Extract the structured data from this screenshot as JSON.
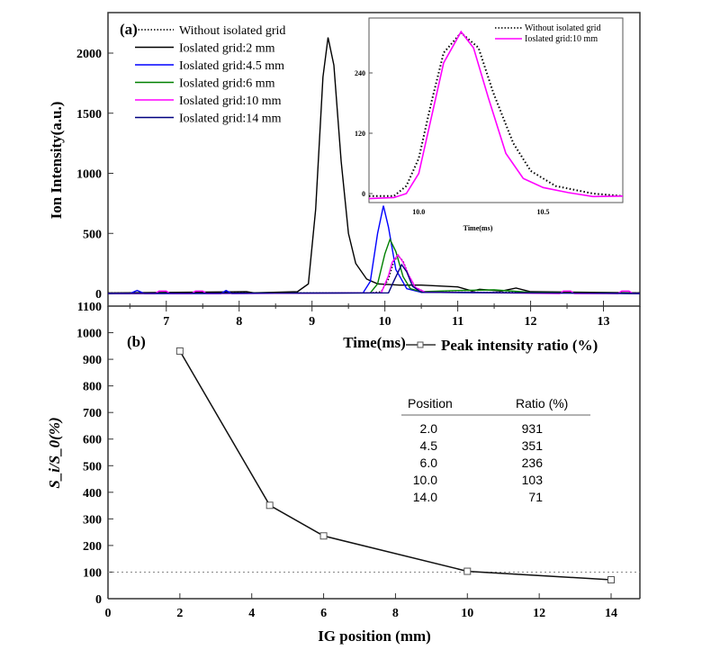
{
  "chart_data": [
    {
      "type": "line",
      "panel_label": "(a)",
      "xlabel": "Time(ms)",
      "ylabel": "Ion Intensity(a.u.)",
      "xlim": [
        6.2,
        13.5
      ],
      "ylim": [
        -50,
        2300
      ],
      "xticks": [
        7,
        8,
        9,
        10,
        11,
        12,
        13
      ],
      "yticks": [
        0,
        500,
        1000,
        1500,
        2000
      ],
      "legend_position": "top-left",
      "series": [
        {
          "name": "Without isolated grid",
          "color": "#000000",
          "style": "dotted",
          "points": [
            [
              6.2,
              5
            ],
            [
              9.8,
              5
            ],
            [
              9.95,
              15
            ],
            [
              10.05,
              120
            ],
            [
              10.12,
              260
            ],
            [
              10.18,
              315
            ],
            [
              10.25,
              270
            ],
            [
              10.32,
              160
            ],
            [
              10.42,
              50
            ],
            [
              10.55,
              12
            ],
            [
              13.5,
              5
            ]
          ]
        },
        {
          "name": "Ioslated grid:2 mm",
          "color": "#000000",
          "style": "solid",
          "points": [
            [
              6.2,
              5
            ],
            [
              8.1,
              15
            ],
            [
              8.2,
              5
            ],
            [
              8.8,
              15
            ],
            [
              8.95,
              80
            ],
            [
              9.05,
              700
            ],
            [
              9.15,
              1800
            ],
            [
              9.22,
              2130
            ],
            [
              9.3,
              1900
            ],
            [
              9.4,
              1100
            ],
            [
              9.5,
              500
            ],
            [
              9.6,
              250
            ],
            [
              9.75,
              120
            ],
            [
              9.9,
              80
            ],
            [
              10.2,
              70
            ],
            [
              10.5,
              70
            ],
            [
              11,
              55
            ],
            [
              11.2,
              20
            ],
            [
              11.3,
              35
            ],
            [
              11.6,
              20
            ],
            [
              11.8,
              45
            ],
            [
              12,
              15
            ],
            [
              13.5,
              5
            ]
          ]
        },
        {
          "name": "Ioslated grid:4.5 mm",
          "color": "#0000ff",
          "style": "solid",
          "points": [
            [
              6.2,
              0
            ],
            [
              6.5,
              0
            ],
            [
              6.6,
              25
            ],
            [
              6.7,
              0
            ],
            [
              7.75,
              0
            ],
            [
              7.82,
              25
            ],
            [
              7.9,
              0
            ],
            [
              9.7,
              5
            ],
            [
              9.8,
              100
            ],
            [
              9.9,
              500
            ],
            [
              9.98,
              730
            ],
            [
              10.05,
              550
            ],
            [
              10.15,
              200
            ],
            [
              10.3,
              40
            ],
            [
              10.5,
              10
            ],
            [
              13.5,
              0
            ]
          ]
        },
        {
          "name": "Ioslated grid:6 mm",
          "color": "#008000",
          "style": "solid",
          "points": [
            [
              6.2,
              0
            ],
            [
              9.8,
              5
            ],
            [
              9.9,
              80
            ],
            [
              10.0,
              330
            ],
            [
              10.07,
              450
            ],
            [
              10.15,
              350
            ],
            [
              10.25,
              140
            ],
            [
              10.35,
              40
            ],
            [
              10.5,
              15
            ],
            [
              11,
              25
            ],
            [
              11.5,
              30
            ],
            [
              12,
              10
            ],
            [
              13.5,
              0
            ]
          ]
        },
        {
          "name": "Ioslated grid:10 mm",
          "color": "#ff00ff",
          "style": "solid",
          "points": [
            [
              6.2,
              0
            ],
            [
              6.85,
              0
            ],
            [
              6.9,
              20
            ],
            [
              7.0,
              20
            ],
            [
              7.05,
              0
            ],
            [
              7.35,
              0
            ],
            [
              7.4,
              20
            ],
            [
              7.5,
              20
            ],
            [
              7.55,
              0
            ],
            [
              9.95,
              5
            ],
            [
              10.05,
              150
            ],
            [
              10.1,
              260
            ],
            [
              10.18,
              322
            ],
            [
              10.25,
              260
            ],
            [
              10.32,
              160
            ],
            [
              10.42,
              50
            ],
            [
              10.55,
              12
            ],
            [
              12.4,
              0
            ],
            [
              12.45,
              20
            ],
            [
              12.55,
              20
            ],
            [
              12.6,
              0
            ],
            [
              13.2,
              0
            ],
            [
              13.25,
              20
            ],
            [
              13.35,
              20
            ],
            [
              13.4,
              0
            ],
            [
              13.5,
              0
            ]
          ]
        },
        {
          "name": "Ioslated grid:14 mm",
          "color": "#000080",
          "style": "solid",
          "points": [
            [
              6.2,
              0
            ],
            [
              10.05,
              5
            ],
            [
              10.12,
              100
            ],
            [
              10.23,
              240
            ],
            [
              10.3,
              180
            ],
            [
              10.38,
              60
            ],
            [
              10.5,
              10
            ],
            [
              13.5,
              0
            ]
          ]
        }
      ]
    },
    {
      "type": "line",
      "role": "inset",
      "xlabel": "Time(ms)",
      "xlim": [
        9.8,
        10.82
      ],
      "ylim": [
        -20,
        335
      ],
      "xticks": [
        10.0,
        10.5
      ],
      "yticks": [
        0,
        120,
        240
      ],
      "legend_position": "top-right",
      "series": [
        {
          "name": "Without isolated grid",
          "color": "#000000",
          "style": "dotted",
          "points": [
            [
              9.8,
              -5
            ],
            [
              9.9,
              -5
            ],
            [
              9.95,
              15
            ],
            [
              10.0,
              70
            ],
            [
              10.05,
              180
            ],
            [
              10.1,
              280
            ],
            [
              10.17,
              320
            ],
            [
              10.24,
              290
            ],
            [
              10.3,
              200
            ],
            [
              10.38,
              100
            ],
            [
              10.45,
              45
            ],
            [
              10.55,
              15
            ],
            [
              10.7,
              0
            ],
            [
              10.82,
              -5
            ]
          ]
        },
        {
          "name": "Ioslated grid:10 mm",
          "color": "#ff00ff",
          "style": "solid",
          "points": [
            [
              9.8,
              -10
            ],
            [
              9.9,
              -8
            ],
            [
              9.95,
              0
            ],
            [
              10.0,
              40
            ],
            [
              10.05,
              150
            ],
            [
              10.1,
              260
            ],
            [
              10.17,
              322
            ],
            [
              10.22,
              290
            ],
            [
              10.28,
              190
            ],
            [
              10.35,
              80
            ],
            [
              10.42,
              30
            ],
            [
              10.5,
              12
            ],
            [
              10.6,
              2
            ],
            [
              10.7,
              -6
            ],
            [
              10.82,
              -5
            ]
          ]
        }
      ]
    },
    {
      "type": "line",
      "panel_label": "(b)",
      "xlabel": "IG position (mm)",
      "ylabel": "S_i/S_0(%)",
      "xlim": [
        0,
        14.8
      ],
      "ylim": [
        0,
        1100
      ],
      "xticks": [
        0,
        2,
        4,
        6,
        8,
        10,
        12,
        14
      ],
      "yticks": [
        0,
        100,
        200,
        300,
        400,
        500,
        600,
        700,
        800,
        900,
        1000,
        1100
      ],
      "reference_line": 100,
      "legend_position": "top-right",
      "series": [
        {
          "name": "Peak intensity ratio (%)",
          "color": "#000000",
          "marker": "open-square",
          "x": [
            2,
            4.5,
            6,
            10,
            14
          ],
          "y": [
            931,
            351,
            236,
            103,
            71
          ]
        }
      ],
      "table": {
        "headers": [
          "Position",
          "Ratio (%)"
        ],
        "rows": [
          [
            "2.0",
            "931"
          ],
          [
            "4.5",
            "351"
          ],
          [
            "6.0",
            "236"
          ],
          [
            "10.0",
            "103"
          ],
          [
            "14.0",
            "71"
          ]
        ]
      }
    }
  ]
}
